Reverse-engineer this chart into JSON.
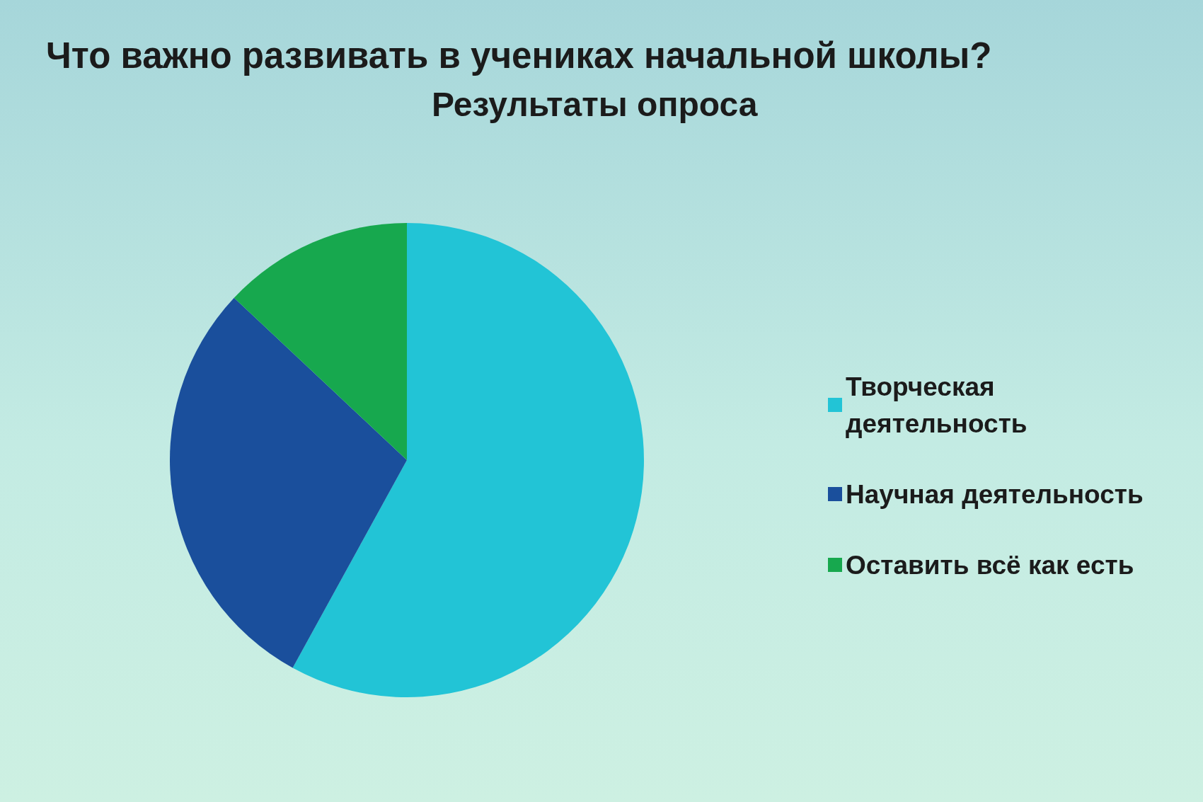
{
  "chart_data": {
    "type": "pie",
    "title": "Что важно развивать в учениках начальной школы?",
    "subtitle": "Результаты опроса",
    "categories": [
      "Творческая деятельность",
      "Научная деятельность",
      "Оставить всё как есть"
    ],
    "values": [
      58,
      29,
      13
    ],
    "colors": [
      "#22c4d6",
      "#1a4f9c",
      "#17a84e"
    ],
    "legend": "right"
  }
}
